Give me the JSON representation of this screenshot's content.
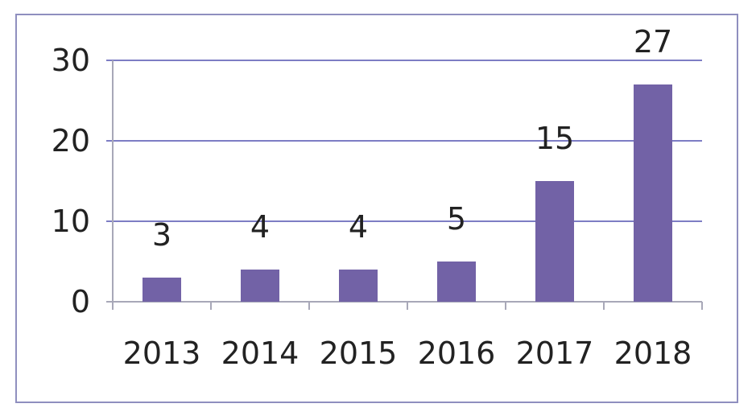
{
  "chart_data": {
    "type": "bar",
    "categories": [
      "2013",
      "2014",
      "2015",
      "2016",
      "2017",
      "2018"
    ],
    "values": [
      3,
      4,
      4,
      5,
      15,
      27
    ],
    "data_labels": [
      "3",
      "4",
      "4",
      "5",
      "15",
      "27"
    ],
    "title": "",
    "xlabel": "",
    "ylabel": "",
    "ylim": [
      0,
      30
    ],
    "yticks": [
      "0",
      "10",
      "20",
      "30"
    ],
    "grid": true,
    "legend": "none",
    "colors": {
      "bar": "#7262a6",
      "grid": "#7d7dc4",
      "axis": "#a8a8b8",
      "frame": "#8f8fbf",
      "text": "#222222"
    }
  }
}
